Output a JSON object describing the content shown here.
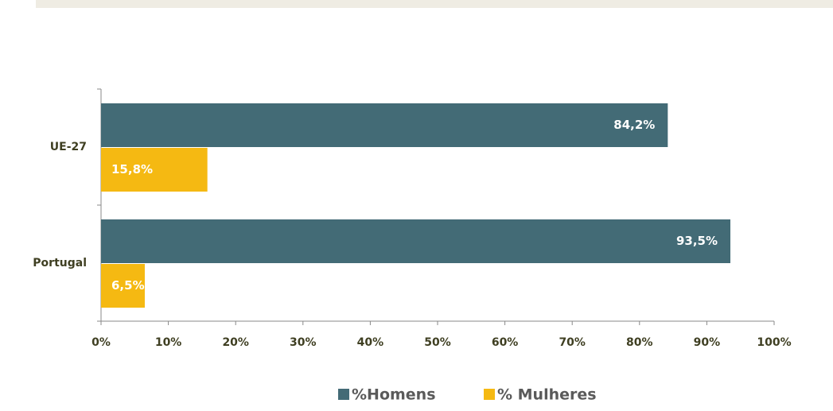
{
  "chart_data": {
    "type": "hbar",
    "categories": [
      "UE-27",
      "Portugal"
    ],
    "series": [
      {
        "name": "%Homens",
        "color": "#436b76",
        "values": [
          84.2,
          93.5
        ],
        "value_labels": [
          "84,2%",
          "93,5%"
        ]
      },
      {
        "name": "% Mulheres",
        "color": "#f5b912",
        "values": [
          15.8,
          6.5
        ],
        "value_labels": [
          "15,8%",
          "6,5%"
        ]
      }
    ],
    "xlim": [
      0,
      100
    ],
    "xticks": [
      {
        "value": 0,
        "label": "0%"
      },
      {
        "value": 10,
        "label": "10%"
      },
      {
        "value": 20,
        "label": "20%"
      },
      {
        "value": 30,
        "label": "30%"
      },
      {
        "value": 40,
        "label": "40%"
      },
      {
        "value": 50,
        "label": "50%"
      },
      {
        "value": 60,
        "label": "60%"
      },
      {
        "value": 70,
        "label": "70%"
      },
      {
        "value": 80,
        "label": "80%"
      },
      {
        "value": 90,
        "label": "90%"
      },
      {
        "value": 100,
        "label": "100%"
      }
    ],
    "legend": "bottom"
  }
}
